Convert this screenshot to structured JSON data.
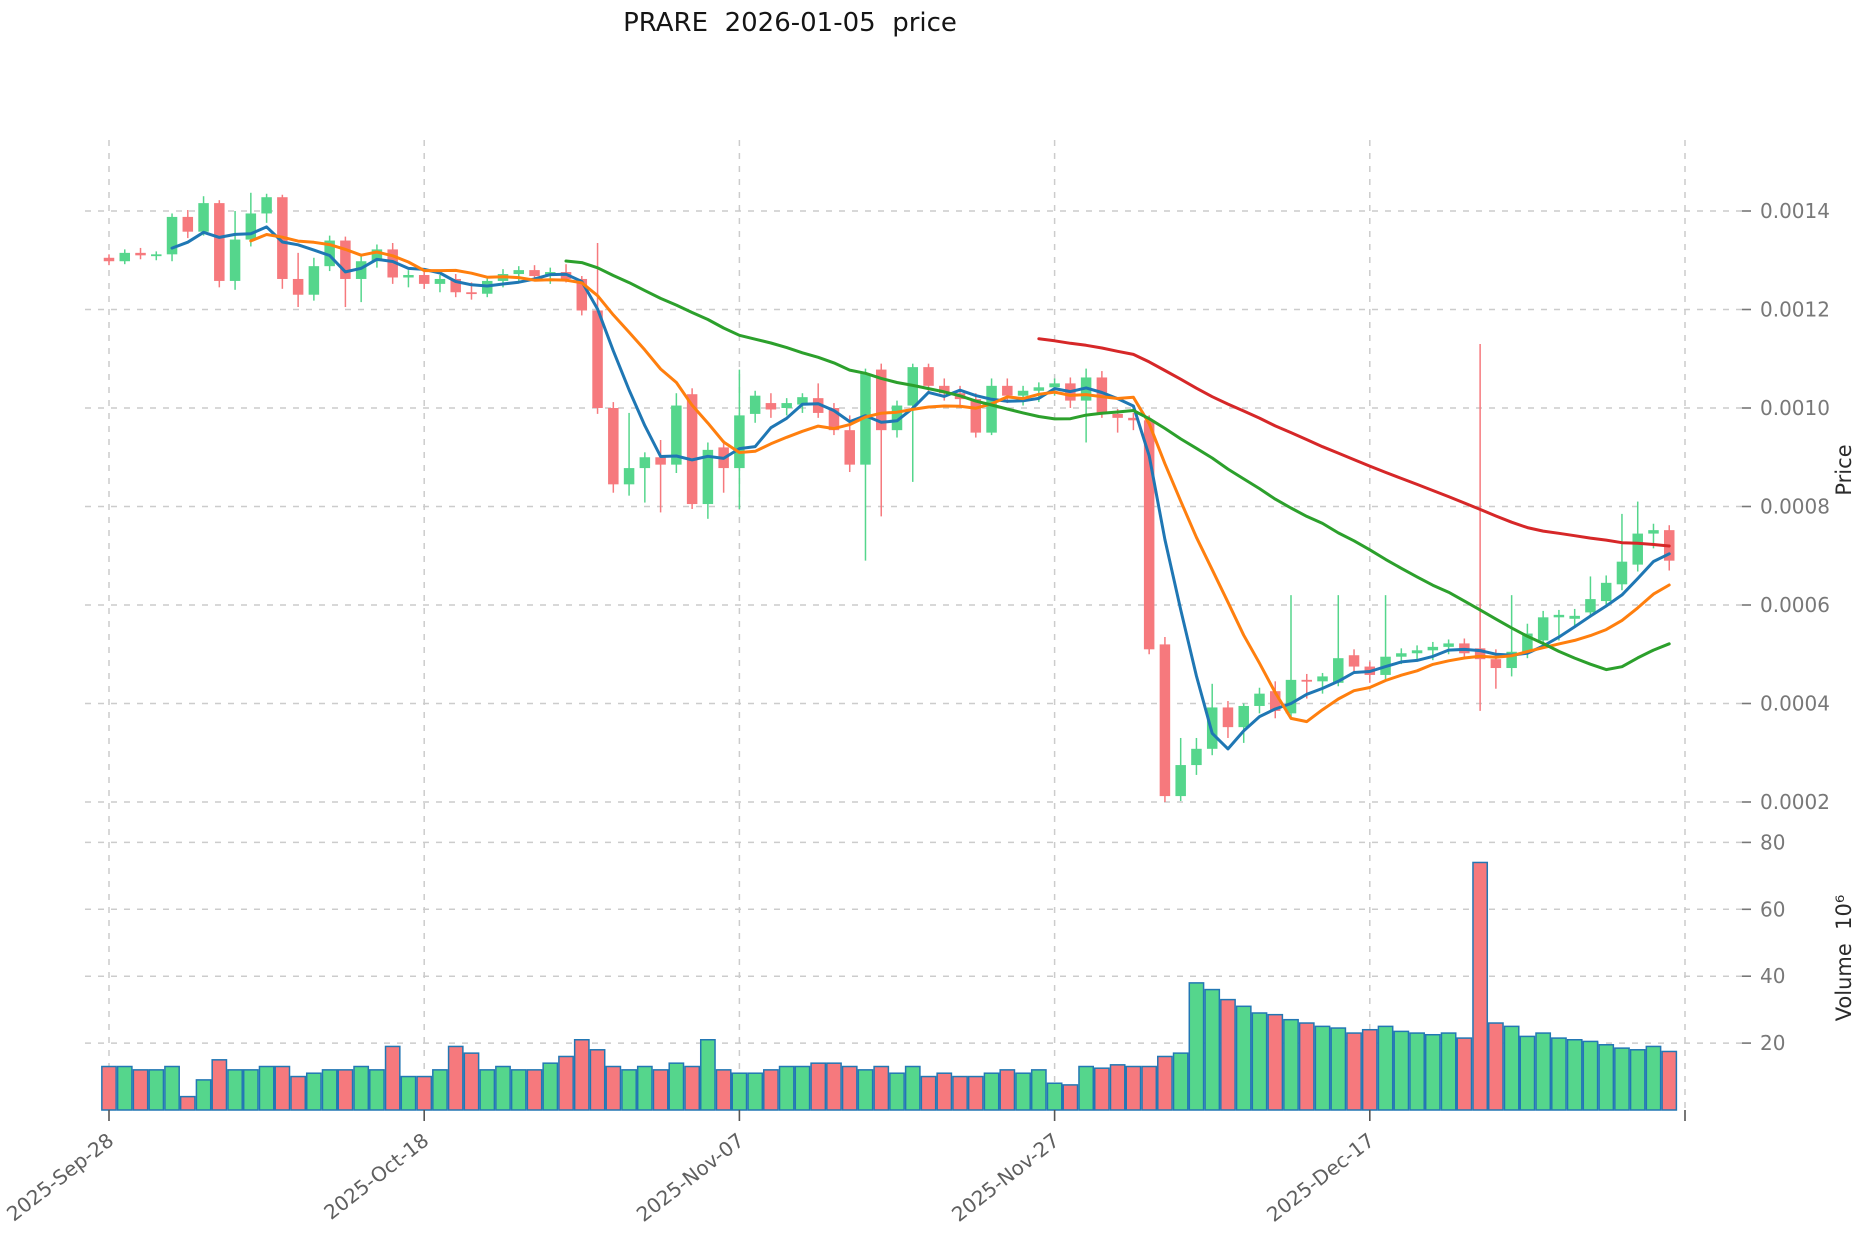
{
  "title": "PRARE  2026-01-05  price",
  "axes": {
    "price_label": "Price",
    "volume_label": "Volume  10⁶",
    "price_tick_labels": [
      "0.0014",
      "0.0012",
      "0.0010",
      "0.0008",
      "0.0006",
      "0.0004",
      "0.0002"
    ],
    "volume_tick_labels": [
      "80",
      "60",
      "40",
      "20"
    ],
    "x_tick_labels": [
      "2025-Sep-28",
      "2025-Oct-18",
      "2025-Nov-07",
      "2025-Nov-27",
      "2025-Dec-17"
    ]
  },
  "chart_data": {
    "type": "candlestick",
    "title": "PRARE  2026-01-05  price",
    "xlabel": "",
    "ylabel": "Price",
    "ylabel2": "Volume  10⁶",
    "price_unit": "1e-4",
    "volume_unit": "1e6",
    "grid": true,
    "legend_position": "none",
    "price_ticks": [
      14,
      12,
      10,
      8,
      6,
      4,
      2
    ],
    "volume_ticks": [
      80,
      60,
      40,
      20
    ],
    "ylim_price": [
      1.55,
      15.55
    ],
    "ylim_volume": [
      0,
      89
    ],
    "x_first_date": "2025-Sep-28",
    "x_last_date": "2026-01-05",
    "x_tick_indices": [
      0,
      20,
      40,
      60,
      80,
      100
    ],
    "x_tick_labels": [
      "2025-Sep-28",
      "2025-Oct-18",
      "2025-Nov-07",
      "2025-Nov-27",
      "2025-Dec-17"
    ],
    "ma_windows": [
      5,
      10,
      30,
      60
    ],
    "ma_colors": [
      "#1f77b4",
      "#ff7f0e",
      "#2ca02c",
      "#d62728"
    ],
    "colors": {
      "up": "#55d68c",
      "down": "#f6797d",
      "volume_edge": "#2277b4",
      "grid": "#cccccc",
      "tick_text": "#787878",
      "date_text": "#5f5f5f",
      "tick_mark": "#777777"
    },
    "ohlc": [
      [
        13.05,
        13.12,
        12.9,
        12.98
      ],
      [
        12.98,
        13.22,
        12.92,
        13.15
      ],
      [
        13.15,
        13.25,
        13.02,
        13.1
      ],
      [
        13.1,
        13.18,
        13.0,
        13.12
      ],
      [
        13.12,
        13.95,
        12.98,
        13.88
      ],
      [
        13.88,
        14.02,
        13.45,
        13.58
      ],
      [
        13.58,
        14.3,
        13.5,
        14.16
      ],
      [
        14.16,
        14.22,
        12.45,
        12.58
      ],
      [
        12.58,
        14.0,
        12.4,
        13.42
      ],
      [
        13.42,
        14.37,
        13.28,
        13.95
      ],
      [
        13.95,
        14.35,
        13.76,
        14.28
      ],
      [
        14.28,
        14.33,
        12.42,
        12.62
      ],
      [
        12.62,
        13.15,
        12.05,
        12.3
      ],
      [
        12.3,
        13.05,
        12.18,
        12.88
      ],
      [
        12.88,
        13.5,
        12.78,
        13.4
      ],
      [
        13.4,
        13.48,
        12.05,
        12.62
      ],
      [
        12.62,
        13.08,
        12.15,
        12.98
      ],
      [
        12.98,
        13.32,
        12.85,
        13.22
      ],
      [
        13.22,
        13.35,
        12.52,
        12.65
      ],
      [
        12.65,
        12.8,
        12.45,
        12.7
      ],
      [
        12.7,
        12.78,
        12.42,
        12.52
      ],
      [
        12.52,
        12.7,
        12.35,
        12.62
      ],
      [
        12.62,
        12.72,
        12.25,
        12.35
      ],
      [
        12.35,
        12.55,
        12.2,
        12.32
      ],
      [
        12.32,
        12.65,
        12.25,
        12.58
      ],
      [
        12.58,
        12.82,
        12.45,
        12.72
      ],
      [
        12.72,
        12.88,
        12.58,
        12.8
      ],
      [
        12.8,
        12.9,
        12.6,
        12.68
      ],
      [
        12.68,
        12.85,
        12.52,
        12.76
      ],
      [
        12.76,
        12.92,
        12.55,
        12.62
      ],
      [
        12.62,
        12.68,
        11.88,
        11.98
      ],
      [
        11.98,
        13.35,
        9.88,
        10.0
      ],
      [
        10.0,
        10.12,
        8.28,
        8.45
      ],
      [
        8.45,
        9.9,
        8.22,
        8.78
      ],
      [
        8.78,
        9.1,
        8.08,
        9.0
      ],
      [
        9.0,
        9.35,
        7.88,
        8.85
      ],
      [
        8.85,
        10.3,
        8.68,
        10.05
      ],
      [
        10.28,
        10.4,
        7.95,
        8.05
      ],
      [
        8.05,
        9.3,
        7.75,
        9.15
      ],
      [
        9.2,
        9.35,
        8.28,
        8.78
      ],
      [
        8.78,
        10.78,
        7.95,
        9.85
      ],
      [
        9.88,
        10.35,
        9.7,
        10.25
      ],
      [
        10.1,
        10.3,
        9.8,
        9.97
      ],
      [
        10.0,
        10.2,
        9.85,
        10.1
      ],
      [
        10.07,
        10.3,
        9.9,
        10.22
      ],
      [
        10.2,
        10.5,
        9.8,
        9.9
      ],
      [
        10.0,
        10.1,
        9.45,
        9.55
      ],
      [
        9.55,
        9.85,
        8.7,
        8.85
      ],
      [
        8.85,
        10.8,
        6.9,
        10.7
      ],
      [
        10.78,
        10.9,
        7.8,
        9.55
      ],
      [
        9.55,
        10.15,
        9.4,
        10.05
      ],
      [
        10.05,
        10.9,
        8.5,
        10.83
      ],
      [
        10.83,
        10.9,
        10.3,
        10.45
      ],
      [
        10.45,
        10.6,
        10.15,
        10.3
      ],
      [
        10.3,
        10.45,
        10.0,
        10.18
      ],
      [
        10.18,
        10.3,
        9.4,
        9.5
      ],
      [
        9.5,
        10.6,
        9.45,
        10.45
      ],
      [
        10.45,
        10.6,
        10.1,
        10.25
      ],
      [
        10.25,
        10.45,
        10.05,
        10.35
      ],
      [
        10.35,
        10.52,
        10.12,
        10.42
      ],
      [
        10.42,
        10.6,
        10.25,
        10.5
      ],
      [
        10.5,
        10.62,
        10.0,
        10.15
      ],
      [
        10.15,
        10.8,
        9.3,
        10.62
      ],
      [
        10.62,
        10.75,
        9.8,
        9.88
      ],
      [
        9.88,
        9.98,
        9.5,
        9.8
      ],
      [
        9.8,
        9.9,
        9.55,
        9.75
      ],
      [
        9.75,
        9.85,
        5.0,
        5.1
      ],
      [
        5.2,
        5.35,
        2.0,
        2.12
      ],
      [
        2.12,
        3.3,
        2.02,
        2.75
      ],
      [
        2.75,
        3.3,
        2.55,
        3.08
      ],
      [
        3.08,
        4.4,
        2.95,
        3.92
      ],
      [
        3.92,
        4.05,
        3.3,
        3.52
      ],
      [
        3.52,
        4.0,
        3.2,
        3.95
      ],
      [
        3.95,
        4.32,
        3.8,
        4.2
      ],
      [
        4.25,
        4.45,
        3.7,
        3.85
      ],
      [
        3.8,
        6.2,
        3.68,
        4.48
      ],
      [
        4.48,
        4.6,
        4.1,
        4.45
      ],
      [
        4.45,
        4.62,
        4.2,
        4.55
      ],
      [
        4.42,
        6.2,
        4.35,
        4.92
      ],
      [
        4.98,
        5.1,
        4.6,
        4.75
      ],
      [
        4.75,
        4.85,
        4.42,
        4.58
      ],
      [
        4.58,
        6.2,
        4.48,
        4.95
      ],
      [
        4.95,
        5.12,
        4.8,
        5.02
      ],
      [
        5.02,
        5.18,
        4.85,
        5.08
      ],
      [
        5.08,
        5.25,
        4.88,
        5.15
      ],
      [
        5.15,
        5.3,
        5.0,
        5.22
      ],
      [
        5.22,
        5.32,
        4.9,
        5.02
      ],
      [
        5.12,
        11.3,
        3.85,
        4.9
      ],
      [
        4.9,
        5.1,
        4.3,
        4.72
      ],
      [
        4.72,
        6.2,
        4.55,
        5.05
      ],
      [
        5.05,
        5.62,
        4.92,
        5.42
      ],
      [
        5.28,
        5.88,
        5.15,
        5.75
      ],
      [
        5.75,
        5.9,
        5.28,
        5.8
      ],
      [
        5.72,
        5.92,
        5.58,
        5.78
      ],
      [
        5.85,
        6.58,
        5.75,
        6.12
      ],
      [
        6.08,
        6.6,
        5.95,
        6.45
      ],
      [
        6.42,
        7.85,
        6.3,
        6.88
      ],
      [
        6.82,
        8.1,
        6.68,
        7.45
      ],
      [
        7.45,
        7.65,
        7.15,
        7.52
      ],
      [
        7.52,
        7.62,
        6.7,
        6.9
      ]
    ],
    "volumes": [
      13,
      13,
      12,
      12,
      13,
      4,
      9,
      15,
      12,
      12,
      13,
      13,
      10,
      11,
      12,
      12,
      13,
      12,
      19,
      10,
      10,
      12,
      19,
      17,
      12,
      13,
      12,
      12,
      14,
      16,
      21,
      18,
      13,
      12,
      13,
      12,
      14,
      13,
      21,
      12,
      11,
      11,
      12,
      13,
      13,
      14,
      14,
      13,
      12,
      13,
      11,
      13,
      10,
      11,
      10,
      10,
      11,
      12,
      11,
      12,
      8,
      7.5,
      13,
      12.5,
      13.5,
      13,
      13,
      16,
      17,
      38,
      36,
      33,
      31,
      29,
      28.5,
      27,
      26,
      25,
      24.5,
      23,
      24,
      25,
      23.5,
      23,
      22.5,
      23,
      21.5,
      74,
      26,
      25,
      22,
      23,
      21.5,
      21,
      20.5,
      19.5,
      18.5,
      18,
      19,
      17.5
    ]
  }
}
